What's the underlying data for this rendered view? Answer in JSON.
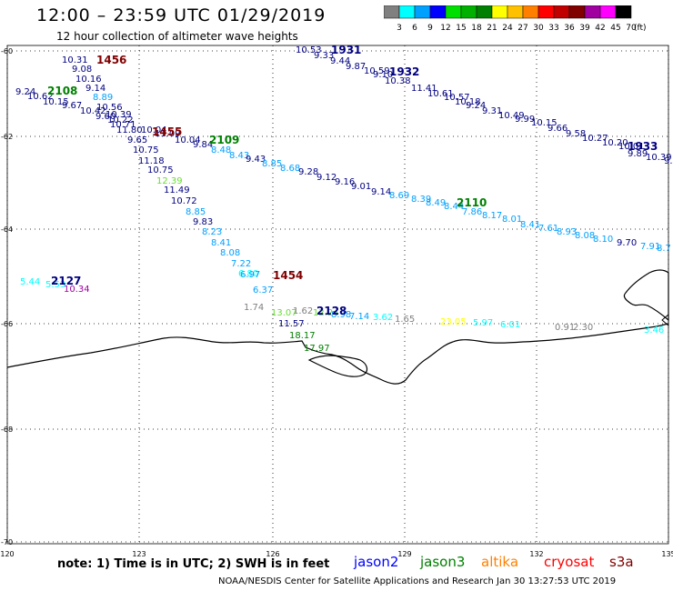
{
  "header": {
    "title": "12:00 – 23:59 UTC 01/29/2019",
    "subtitle": "12 hour collection of altimeter wave heights"
  },
  "legend": {
    "labels": [
      "3",
      "6",
      "9",
      "12",
      "15",
      "18",
      "21",
      "24",
      "27",
      "30",
      "33",
      "36",
      "39",
      "42",
      "45",
      "70"
    ],
    "unit": "(ft)",
    "colors": [
      "#808080",
      "#00ffff",
      "#00a0ff",
      "#0000ff",
      "#00e000",
      "#00b000",
      "#008000",
      "#ffff00",
      "#ffc000",
      "#ff8000",
      "#ff0000",
      "#c00000",
      "#800000",
      "#a000a0",
      "#ff00ff",
      "#000000"
    ]
  },
  "axes": {
    "lat_labels": [
      "-60",
      "-62",
      "-64",
      "-66",
      "-68",
      "-70"
    ],
    "lon_labels": [
      "120",
      "123",
      "126",
      "129",
      "132",
      "135"
    ]
  },
  "footer": {
    "note": "note:  1) Time is in UTC;  2) SWH is in feet",
    "satellites": [
      {
        "name": "jason2",
        "color": "#0000ff"
      },
      {
        "name": "jason3",
        "color": "#008000"
      },
      {
        "name": "altika",
        "color": "#ff8000"
      },
      {
        "name": "cryosat",
        "color": "#ff0000"
      },
      {
        "name": "s3a",
        "color": "#800000"
      }
    ],
    "credit": "NOAA/NESDIS Center for Satellite Applications and Research     Jan 30 13:27:53 UTC 2019"
  },
  "track_labels": [
    {
      "text": "1456",
      "color": "#800000"
    },
    {
      "text": "2108",
      "color": "#008000"
    },
    {
      "text": "1455",
      "color": "#800000"
    },
    {
      "text": "2109",
      "color": "#008000"
    },
    {
      "text": "1931",
      "color": "#000080"
    },
    {
      "text": "1932",
      "color": "#000080"
    },
    {
      "text": "1933",
      "color": "#000080"
    },
    {
      "text": "2110",
      "color": "#008000"
    },
    {
      "text": "2127",
      "color": "#000080"
    },
    {
      "text": "1454",
      "color": "#800000"
    },
    {
      "text": "2128",
      "color": "#000080"
    }
  ],
  "observations": [
    {
      "v": "10.31",
      "c": "#000080"
    },
    {
      "v": "9.08",
      "c": "#000080"
    },
    {
      "v": "10.16",
      "c": "#000080"
    },
    {
      "v": "9.14",
      "c": "#000080"
    },
    {
      "v": "9.24",
      "c": "#000080"
    },
    {
      "v": "10.62",
      "c": "#000080"
    },
    {
      "v": "8.89",
      "c": "#00a0ff"
    },
    {
      "v": "10.15",
      "c": "#000080"
    },
    {
      "v": "9.67",
      "c": "#000080"
    },
    {
      "v": "10.56",
      "c": "#000080"
    },
    {
      "v": "10.42",
      "c": "#000080"
    },
    {
      "v": "9.60",
      "c": "#000080"
    },
    {
      "v": "10.39",
      "c": "#000080"
    },
    {
      "v": "10.71",
      "c": "#000080"
    },
    {
      "v": "10.22",
      "c": "#000080"
    },
    {
      "v": "11.80",
      "c": "#000080"
    },
    {
      "v": "10.04",
      "c": "#000080"
    },
    {
      "v": "11.09",
      "c": "#000080"
    },
    {
      "v": "9.65",
      "c": "#000080"
    },
    {
      "v": "10.04",
      "c": "#000080"
    },
    {
      "v": "9.84",
      "c": "#000080"
    },
    {
      "v": "10.75",
      "c": "#000080"
    },
    {
      "v": "8.48",
      "c": "#00a0ff"
    },
    {
      "v": "11.18",
      "c": "#000080"
    },
    {
      "v": "8.43",
      "c": "#00a0ff"
    },
    {
      "v": "9.43",
      "c": "#000080"
    },
    {
      "v": "10.75",
      "c": "#000080"
    },
    {
      "v": "8.85",
      "c": "#00a0ff"
    },
    {
      "v": "8.68",
      "c": "#00a0ff"
    },
    {
      "v": "12.39",
      "c": "#66dd33"
    },
    {
      "v": "9.28",
      "c": "#000080"
    },
    {
      "v": "9.12",
      "c": "#000080"
    },
    {
      "v": "11.49",
      "c": "#000080"
    },
    {
      "v": "9.16",
      "c": "#000080"
    },
    {
      "v": "9.01",
      "c": "#000080"
    },
    {
      "v": "10.72",
      "c": "#000080"
    },
    {
      "v": "9.14",
      "c": "#000080"
    },
    {
      "v": "8.69",
      "c": "#00a0ff"
    },
    {
      "v": "8.85",
      "c": "#00a0ff"
    },
    {
      "v": "8.39",
      "c": "#00a0ff"
    },
    {
      "v": "8.49",
      "c": "#00a0ff"
    },
    {
      "v": "9.83",
      "c": "#000080"
    },
    {
      "v": "8.44",
      "c": "#00a0ff"
    },
    {
      "v": "7.86",
      "c": "#00a0ff"
    },
    {
      "v": "8.17",
      "c": "#00a0ff"
    },
    {
      "v": "8.23",
      "c": "#00a0ff"
    },
    {
      "v": "8.01",
      "c": "#00a0ff"
    },
    {
      "v": "8.41",
      "c": "#00a0ff"
    },
    {
      "v": "8.41",
      "c": "#00a0ff"
    },
    {
      "v": "7.61",
      "c": "#00a0ff"
    },
    {
      "v": "8.93",
      "c": "#00a0ff"
    },
    {
      "v": "8.08",
      "c": "#00a0ff"
    },
    {
      "v": "8.10",
      "c": "#00a0ff"
    },
    {
      "v": "8.08",
      "c": "#00a0ff"
    },
    {
      "v": "9.70",
      "c": "#000080"
    },
    {
      "v": "7.91",
      "c": "#00a0ff"
    },
    {
      "v": "8.7",
      "c": "#00a0ff"
    },
    {
      "v": "7.22",
      "c": "#00a0ff"
    },
    {
      "v": "5.44",
      "c": "#00ffff"
    },
    {
      "v": "5.53",
      "c": "#00ffff"
    },
    {
      "v": "10.34",
      "c": "#a000a0"
    },
    {
      "v": "6.80",
      "c": "#00ffff"
    },
    {
      "v": "6.97",
      "c": "#00a0ff"
    },
    {
      "v": "6.37",
      "c": "#00a0ff"
    },
    {
      "v": "1.74",
      "c": "#808080"
    },
    {
      "v": "13.07",
      "c": "#66dd33"
    },
    {
      "v": "1.62",
      "c": "#808080"
    },
    {
      "v": "12.24",
      "c": "#66dd33"
    },
    {
      "v": "8.98",
      "c": "#00a0ff"
    },
    {
      "v": "7.14",
      "c": "#00a0ff"
    },
    {
      "v": "3.62",
      "c": "#00ffff"
    },
    {
      "v": "1.65",
      "c": "#808080"
    },
    {
      "v": "11.57",
      "c": "#000080"
    },
    {
      "v": "23.05",
      "c": "#ffff00"
    },
    {
      "v": "5.97",
      "c": "#00ffff"
    },
    {
      "v": "6.01",
      "c": "#00ffff"
    },
    {
      "v": "0.91",
      "c": "#808080"
    },
    {
      "v": "2.30",
      "c": "#808080"
    },
    {
      "v": "18.17",
      "c": "#008000"
    },
    {
      "v": "3.46",
      "c": "#00ffff"
    },
    {
      "v": "17.97",
      "c": "#008000"
    },
    {
      "v": "10.53",
      "c": "#000080"
    },
    {
      "v": "9.33",
      "c": "#000080"
    },
    {
      "v": "9.44",
      "c": "#000080"
    },
    {
      "v": "9.87",
      "c": "#000080"
    },
    {
      "v": "10.59",
      "c": "#000080"
    },
    {
      "v": "9.10",
      "c": "#000080"
    },
    {
      "v": "10.38",
      "c": "#000080"
    },
    {
      "v": "11.41",
      "c": "#000080"
    },
    {
      "v": "10.61",
      "c": "#000080"
    },
    {
      "v": "10.57",
      "c": "#000080"
    },
    {
      "v": "10.18",
      "c": "#000080"
    },
    {
      "v": "9.24",
      "c": "#000080"
    },
    {
      "v": "9.31",
      "c": "#000080"
    },
    {
      "v": "10.49",
      "c": "#000080"
    },
    {
      "v": "9.99",
      "c": "#000080"
    },
    {
      "v": "10.15",
      "c": "#000080"
    },
    {
      "v": "9.66",
      "c": "#000080"
    },
    {
      "v": "9.58",
      "c": "#000080"
    },
    {
      "v": "10.27",
      "c": "#000080"
    },
    {
      "v": "10.20",
      "c": "#000080"
    },
    {
      "v": "10.01",
      "c": "#000080"
    },
    {
      "v": "9.89",
      "c": "#000080"
    },
    {
      "v": "10.39",
      "c": "#000080"
    },
    {
      "v": "9.6",
      "c": "#000080"
    }
  ]
}
